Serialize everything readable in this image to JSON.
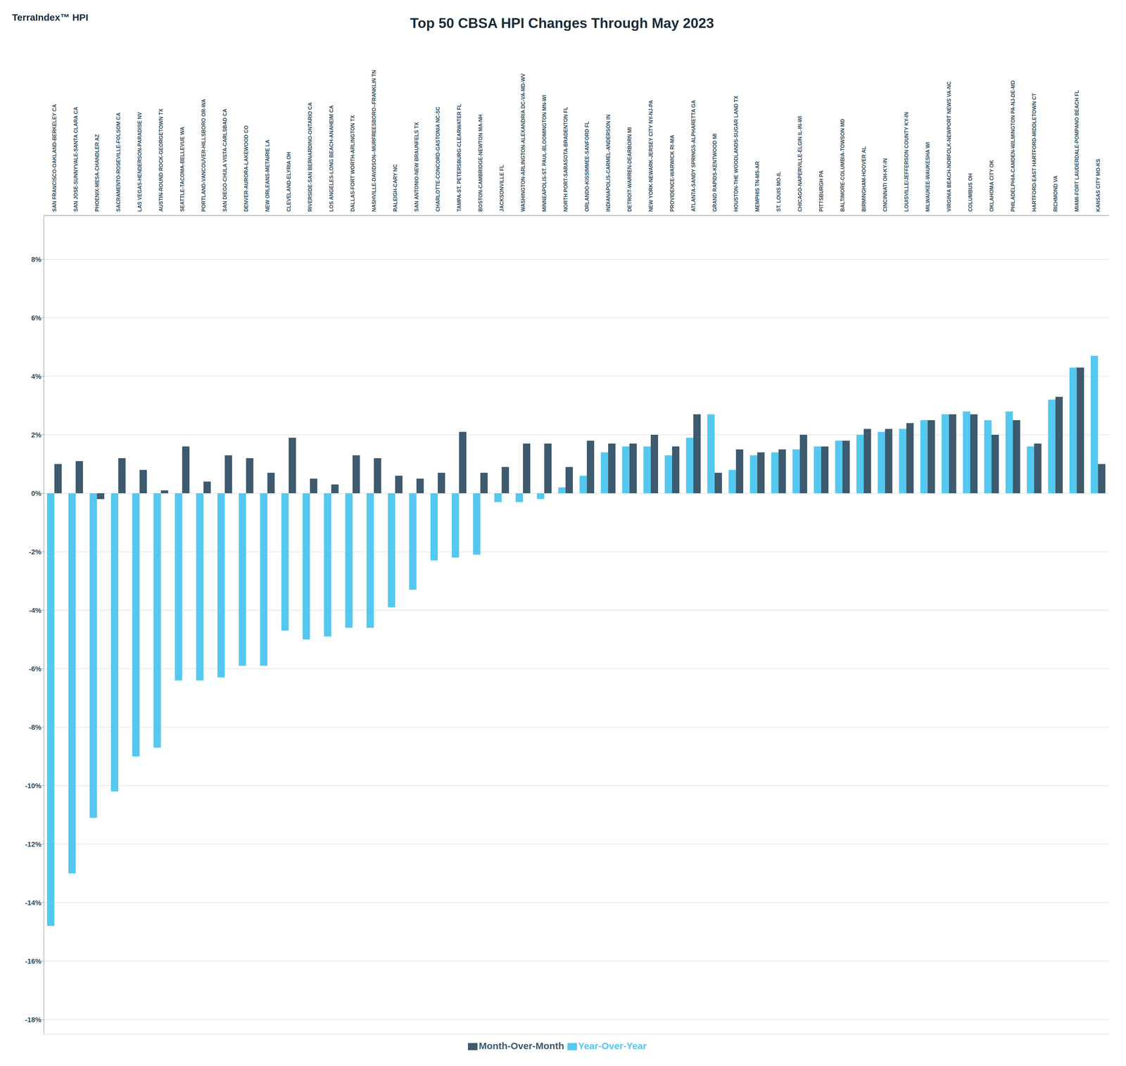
{
  "chart_data": {
    "type": "bar",
    "title": "Top 50 CBSA HPI Changes Through May 2023",
    "annotations": [
      "TerraIndex™ HPI"
    ],
    "categories": [
      "SAN FRANCISCO-OAKLAND-BERKELEY CA",
      "SAN JOSE-SUNNYVALE-SANTA CLARA CA",
      "PHOENIX-MESA-CHANDLER AZ",
      "SACRAMENTO-ROSEVILLE-FOLSOM CA",
      "LAS VEGAS-HENDERSON-PARADISE NV",
      "AUSTIN-ROUND ROCK-GEORGETOWN TX",
      "SEATTLE-TACOMA-BELLEVUE WA",
      "PORTLAND-VANCOUVER-HILLSBORO OR-WA",
      "SAN DIEGO-CHULA VISTA-CARLSBAD CA",
      "DENVER-AURORA-LAKEWOOD CO",
      "NEW ORLEANS-METAIRIE LA",
      "CLEVELAND-ELYRIA OH",
      "RIVERSIDE-SAN BERNARDINO-ONTARIO CA",
      "LOS ANGELES-LONG BEACH-ANAHEIM CA",
      "DALLAS-FORT WORTH-ARLINGTON TX",
      "NASHVILLE-DAVIDSON--MURFREESBORO--FRANKLIN TN",
      "RALEIGH-CARY NC",
      "SAN ANTONIO-NEW BRAUNFELS TX",
      "CHARLOTTE-CONCORD-GASTONIA NC-SC",
      "TAMPA-ST. PETERSBURG-CLEARWATER FL",
      "BOSTON-CAMBRIDGE-NEWTON MA-NH",
      "JACKSONVILLE FL",
      "WASHINGTON-ARLINGTON-ALEXANDRIA DC-VA-MD-WV",
      "MINNEAPOLIS-ST. PAUL-BLOOMINGTON MN-WI",
      "NORTH PORT-SARASOTA-BRADENTON FL",
      "ORLANDO-KISSIMMEE-SANFORD FL",
      "INDIANAPOLIS-CARMEL-ANDERSON IN",
      "DETROIT-WARREN-DEARBORN MI",
      "NEW YORK-NEWARK-JERSEY CITY NY-NJ-PA",
      "PROVIDENCE-WARWICK RI-MA",
      "ATLANTA-SANDY SPRINGS-ALPHARETTA GA",
      "GRAND RAPIDS-KENTWOOD MI",
      "HOUSTON-THE WOODLANDS-SUGAR LAND TX",
      "MEMPHIS TN-MS-AR",
      "ST. LOUIS MO-IL",
      "CHICAGO-NAPERVILLE-ELGIN IL-IN-WI",
      "PITTSBURGH PA",
      "BALTIMORE-COLUMBIA-TOWSON MD",
      "BIRMINGHAM-HOOVER AL",
      "CINCINNATI OH-KY-IN",
      "LOUISVILLE/JEFFERSON COUNTY KY-IN",
      "MILWAUKEE-WAUKESHA WI",
      "VIRGINIA BEACH-NORFOLK-NEWPORT NEWS VA-NC",
      "COLUMBUS OH",
      "OKLAHOMA CITY OK",
      "PHILADELPHIA-CAMDEN-WILMINGTON PA-NJ-DE-MD",
      "HARTFORD-EAST HARTFORD-MIDDLETOWN CT",
      "RICHMOND VA",
      "MIAMI-FORT LAUDERDALE-POMPANO BEACH FL",
      "KANSAS CITY MO-KS"
    ],
    "series": [
      {
        "name": "Year-Over-Year",
        "color": "#55c8f0",
        "values": [
          -14.8,
          -13.0,
          -11.1,
          -10.2,
          -9.0,
          -8.7,
          -6.4,
          -6.4,
          -6.3,
          -5.9,
          -5.9,
          -4.7,
          -5.0,
          -4.9,
          -4.6,
          -4.6,
          -3.9,
          -3.3,
          -2.3,
          -2.2,
          -2.1,
          -0.3,
          -0.3,
          -0.2,
          0.2,
          0.6,
          1.4,
          1.6,
          1.6,
          1.3,
          1.9,
          2.7,
          0.8,
          1.3,
          1.4,
          1.5,
          1.6,
          1.8,
          2.0,
          2.1,
          2.2,
          2.5,
          2.7,
          2.8,
          2.5,
          2.8,
          1.6,
          3.2,
          4.3,
          4.7
        ]
      },
      {
        "name": "Month-Over-Month",
        "color": "#3d5a6e",
        "values": [
          1.0,
          1.1,
          -0.2,
          1.2,
          0.8,
          0.1,
          1.6,
          0.4,
          1.3,
          1.2,
          0.7,
          1.9,
          0.5,
          0.3,
          1.3,
          1.2,
          0.6,
          0.5,
          0.7,
          2.1,
          0.7,
          0.9,
          1.7,
          1.7,
          0.9,
          1.8,
          1.7,
          1.7,
          2.0,
          1.6,
          2.7,
          0.7,
          1.5,
          1.4,
          1.5,
          2.0,
          1.6,
          1.8,
          2.2,
          2.2,
          2.4,
          2.5,
          2.7,
          2.7,
          2.0,
          2.5,
          1.7,
          3.3,
          4.3,
          1.0
        ]
      }
    ],
    "ylim": [
      -18.5,
      9.5
    ],
    "yticks": [
      {
        "value": -18,
        "label": "-18%"
      },
      {
        "value": -16,
        "label": "-16%"
      },
      {
        "value": -14,
        "label": "-14%"
      },
      {
        "value": -12,
        "label": "-12%"
      },
      {
        "value": -10,
        "label": "-10%"
      },
      {
        "value": -8,
        "label": "-8%"
      },
      {
        "value": -6,
        "label": "-6%"
      },
      {
        "value": -4,
        "label": "-4%"
      },
      {
        "value": -2,
        "label": "-2%"
      },
      {
        "value": 0,
        "label": "0%"
      },
      {
        "value": 2,
        "label": "2%"
      },
      {
        "value": 4,
        "label": "4%"
      },
      {
        "value": 6,
        "label": "6%"
      },
      {
        "value": 8,
        "label": "8%"
      }
    ],
    "grid": true,
    "legend": "bottom"
  }
}
